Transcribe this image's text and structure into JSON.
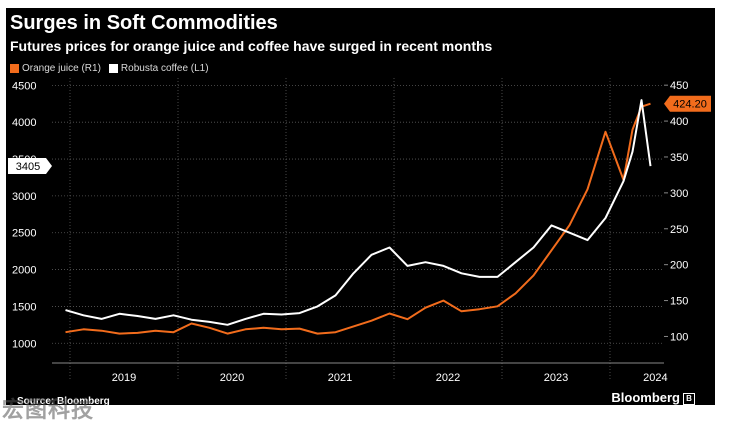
{
  "colors": {
    "background": "#000000",
    "orange": "#f26c1c",
    "white": "#ffffff",
    "grid": "#5a5a5a"
  },
  "watermark": "宏图科技",
  "chart_data": {
    "type": "line",
    "title": "Surges in Soft Commodities",
    "subtitle": "Futures prices for orange juice and coffee have surged in recent months",
    "source": "Source: Bloomberg",
    "brand": "Bloomberg",
    "legend_position": "top-left",
    "grid": true,
    "x_label": "",
    "x_ticks": [
      "2019",
      "2020",
      "2021",
      "2022",
      "2023",
      "2024"
    ],
    "left_axis": {
      "ylim": [
        800,
        4600
      ],
      "ticks": [
        1000,
        1500,
        2000,
        2500,
        3000,
        3500,
        4000,
        4500
      ],
      "label": ""
    },
    "right_axis": {
      "ylim": [
        70,
        460
      ],
      "ticks": [
        100,
        150,
        200,
        250,
        300,
        350,
        400,
        450
      ],
      "label": ""
    },
    "last_value_labels": {
      "left": "3405",
      "right": "424.20"
    },
    "series": [
      {
        "name": "Orange juice (R1)",
        "axis": "right",
        "color": "#f26c1c",
        "x": [
          "2018-12",
          "2019-02",
          "2019-04",
          "2019-06",
          "2019-08",
          "2019-10",
          "2019-12",
          "2020-02",
          "2020-04",
          "2020-06",
          "2020-08",
          "2020-10",
          "2020-12",
          "2021-02",
          "2021-04",
          "2021-06",
          "2021-08",
          "2021-10",
          "2021-12",
          "2022-02",
          "2022-04",
          "2022-06",
          "2022-08",
          "2022-10",
          "2022-12",
          "2023-02",
          "2023-04",
          "2023-06",
          "2023-08",
          "2023-10",
          "2023-12",
          "2024-02",
          "2024-03",
          "2024-04",
          "2024-05"
        ],
        "values": [
          106,
          110,
          108,
          104,
          105,
          108,
          106,
          118,
          112,
          104,
          110,
          112,
          110,
          111,
          104,
          106,
          114,
          122,
          132,
          124,
          140,
          150,
          135,
          138,
          142,
          160,
          185,
          220,
          255,
          305,
          385,
          318,
          388,
          420,
          424.2
        ]
      },
      {
        "name": "Robusta coffee (L1)",
        "axis": "left",
        "color": "#ffffff",
        "x": [
          "2018-12",
          "2019-02",
          "2019-04",
          "2019-06",
          "2019-08",
          "2019-10",
          "2019-12",
          "2020-02",
          "2020-04",
          "2020-06",
          "2020-08",
          "2020-10",
          "2020-12",
          "2021-02",
          "2021-04",
          "2021-06",
          "2021-08",
          "2021-10",
          "2021-12",
          "2022-02",
          "2022-04",
          "2022-06",
          "2022-08",
          "2022-10",
          "2022-12",
          "2023-02",
          "2023-04",
          "2023-06",
          "2023-08",
          "2023-10",
          "2023-12",
          "2024-02",
          "2024-03",
          "2024-04",
          "2024-05"
        ],
        "values": [
          1450,
          1380,
          1330,
          1400,
          1370,
          1330,
          1380,
          1320,
          1290,
          1250,
          1330,
          1400,
          1390,
          1410,
          1500,
          1650,
          1950,
          2200,
          2300,
          2050,
          2100,
          2050,
          1950,
          1900,
          1900,
          2100,
          2300,
          2600,
          2500,
          2400,
          2700,
          3200,
          3600,
          4300,
          3405
        ]
      }
    ]
  }
}
